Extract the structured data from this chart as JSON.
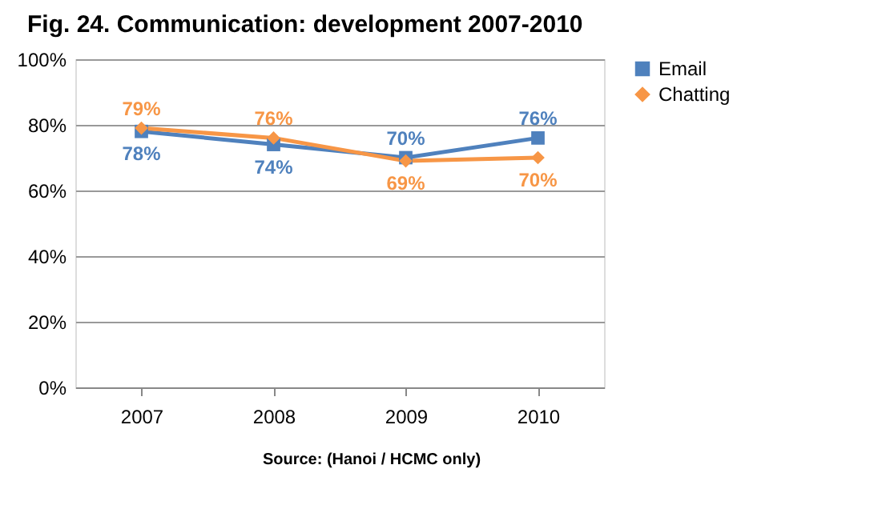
{
  "chart_data": {
    "type": "line",
    "title": "Fig. 24. Communication: development 2007-2010",
    "categories": [
      "2007",
      "2008",
      "2009",
      "2010"
    ],
    "series": [
      {
        "name": "Email",
        "color": "#4f81bd",
        "marker": "square",
        "values": [
          78,
          74,
          70,
          76
        ]
      },
      {
        "name": "Chatting",
        "color": "#f79646",
        "marker": "diamond",
        "values": [
          79,
          76,
          69,
          70
        ]
      }
    ],
    "ylim": [
      0,
      100
    ],
    "yticks": [
      {
        "value": 0,
        "label": "0%"
      },
      {
        "value": 20,
        "label": "20%"
      },
      {
        "value": 40,
        "label": "40%"
      },
      {
        "value": 60,
        "label": "60%"
      },
      {
        "value": 80,
        "label": "80%"
      },
      {
        "value": 100,
        "label": "100%"
      }
    ],
    "value_labels": [
      [
        "78%",
        "74%",
        "70%",
        "76%"
      ],
      [
        "79%",
        "76%",
        "69%",
        "70%"
      ]
    ],
    "grid": "y",
    "legend": "right",
    "line_style": "solid",
    "annotations": [
      "Source: (Hanoi / HCMC only)"
    ]
  }
}
